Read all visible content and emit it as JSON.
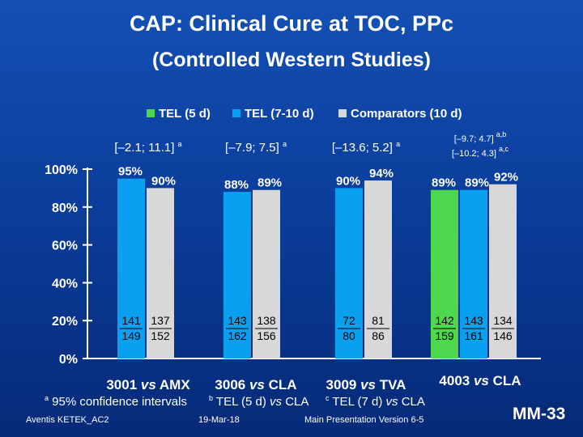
{
  "title": "CAP: Clinical Cure at TOC, PPc",
  "subtitle": "(Controlled Western Studies)",
  "chart_data": {
    "type": "bar",
    "yticks": [
      "100%",
      "80%",
      "60%",
      "40%",
      "20%",
      "0%"
    ],
    "ylim": [
      0,
      100
    ],
    "grid": false,
    "legend_position": "top",
    "series": [
      {
        "name": "TEL (5 d)",
        "color": "#4dd84d"
      },
      {
        "name": "TEL (7-10 d)",
        "color": "#0aa0f0"
      },
      {
        "name": "Comparators (10 d)",
        "color": "#d8d8d8"
      }
    ],
    "groups": [
      {
        "label_prefix": "3001 ",
        "label_vs": "vs",
        "label_suffix": " AMX",
        "ci_text": "[–2.1; 11.1]",
        "ci_sup": "a",
        "ci_text2": "",
        "ci_sup2": "",
        "bars": [
          {
            "series": "TEL (7-10 d)",
            "value": 95,
            "label": "95%",
            "n": "141",
            "N": "149"
          },
          {
            "series": "Comparators (10 d)",
            "value": 90,
            "label": "90%",
            "n": "137",
            "N": "152"
          }
        ]
      },
      {
        "label_prefix": "3006 ",
        "label_vs": "vs",
        "label_suffix": " CLA",
        "ci_text": "[–7.9; 7.5]",
        "ci_sup": "a",
        "ci_text2": "",
        "ci_sup2": "",
        "bars": [
          {
            "series": "TEL (7-10 d)",
            "value": 88,
            "label": "88%",
            "n": "143",
            "N": "162"
          },
          {
            "series": "Comparators (10 d)",
            "value": 89,
            "label": "89%",
            "n": "138",
            "N": "156"
          }
        ]
      },
      {
        "label_prefix": "3009 ",
        "label_vs": "vs",
        "label_suffix": " TVA",
        "ci_text": "[–13.6; 5.2]",
        "ci_sup": "a",
        "ci_text2": "",
        "ci_sup2": "",
        "bars": [
          {
            "series": "TEL (7-10 d)",
            "value": 90,
            "label": "90%",
            "n": "72",
            "N": "80"
          },
          {
            "series": "Comparators (10 d)",
            "value": 94,
            "label": "94%",
            "n": "81",
            "N": "86"
          }
        ]
      },
      {
        "label_prefix": "4003 ",
        "label_vs": "vs",
        "label_suffix": " CLA",
        "ci_text": "[–9.7; 4.7]",
        "ci_sup": "a,b",
        "ci_text2": "[–10.2; 4.3]",
        "ci_sup2": "a,c",
        "bars": [
          {
            "series": "TEL (5 d)",
            "value": 89,
            "label": "89%",
            "n": "142",
            "N": "159"
          },
          {
            "series": "TEL (7-10 d)",
            "value": 89,
            "label": "89%",
            "n": "143",
            "N": "161"
          },
          {
            "series": "Comparators (10 d)",
            "value": 92,
            "label": "92%",
            "n": "134",
            "N": "146"
          }
        ]
      }
    ]
  },
  "footnote": {
    "a_mark": "a",
    "a_text": " 95% confidence intervals",
    "b_mark": "b",
    "b_text": " TEL (5 d) ",
    "b_vs": "vs",
    "b_end": " CLA",
    "c_mark": "c",
    "c_text": " TEL (7 d) ",
    "c_vs": "vs",
    "c_end": " CLA"
  },
  "footer": {
    "left": "Aventis KETEK_AC2",
    "date": "19-Mar-18",
    "version": "Main Presentation Version 6-5",
    "slide": "MM-33"
  }
}
